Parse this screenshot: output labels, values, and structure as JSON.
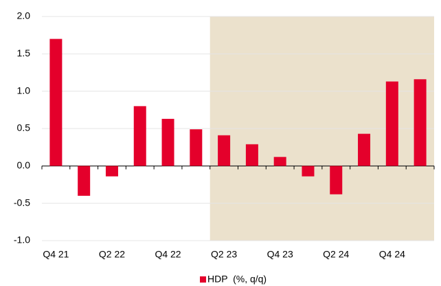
{
  "chart_data": {
    "type": "bar",
    "categories": [
      "Q4 21",
      null,
      "Q2 22",
      null,
      "Q4 22",
      null,
      "Q2 23",
      null,
      "Q4 23",
      null,
      "Q2 24",
      null,
      "Q4 24",
      null
    ],
    "series": [
      {
        "name": "HDP  (%, q/q)",
        "color": "#e4002b",
        "values": [
          1.7,
          -0.4,
          -0.14,
          0.8,
          0.63,
          0.49,
          0.41,
          0.29,
          0.12,
          -0.14,
          -0.38,
          0.43,
          1.13,
          1.16
        ]
      }
    ],
    "ylim": [
      -1,
      2
    ],
    "yticks": [
      {
        "value": -1,
        "label": "-1.0"
      },
      {
        "value": -0.5,
        "label": "-0.5"
      },
      {
        "value": 0,
        "label": "0.0"
      },
      {
        "value": 0.5,
        "label": "0.5"
      },
      {
        "value": 1,
        "label": "1.0"
      },
      {
        "value": 1.5,
        "label": "1.5"
      },
      {
        "value": 2,
        "label": "2.0"
      }
    ],
    "grid": true,
    "shade_from": "Q2 23",
    "shade_color": "#ebe1cc",
    "legend": "bottom"
  }
}
